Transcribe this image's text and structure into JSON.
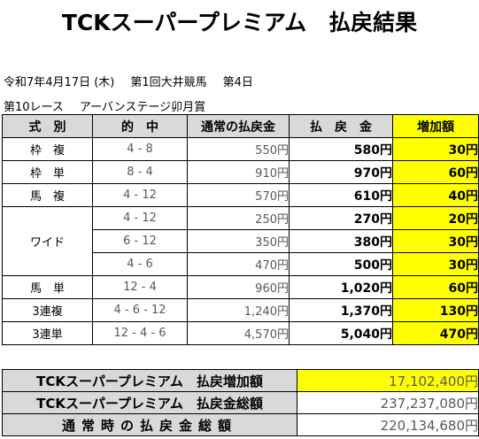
{
  "title": "TCKスーパープレミアム　払戻結果",
  "race_info": {
    "date": "令和7年4月17日 (木)",
    "meeting": "第1回大井競馬",
    "day": "第4日",
    "race_number": "第10レース",
    "race_name": "アーバンステージ卯月賞"
  },
  "table": {
    "headers": {
      "type": "式　別",
      "combination": "的　中",
      "usual": "通常の払戻金",
      "payout": "払　戻　金",
      "increase": "増加額"
    },
    "groups": [
      {
        "type": "枠　複",
        "rows": [
          {
            "combination": "4 - 8",
            "usual": "550円",
            "payout": "580円",
            "increase": "30円"
          }
        ]
      },
      {
        "type": "枠　単",
        "rows": [
          {
            "combination": "8 - 4",
            "usual": "910円",
            "payout": "970円",
            "increase": "60円"
          }
        ]
      },
      {
        "type": "馬　複",
        "rows": [
          {
            "combination": "4 - 12",
            "usual": "570円",
            "payout": "610円",
            "increase": "40円"
          }
        ]
      },
      {
        "type": "ワイド",
        "rows": [
          {
            "combination": "4 - 12",
            "usual": "250円",
            "payout": "270円",
            "increase": "20円"
          },
          {
            "combination": "6 - 12",
            "usual": "350円",
            "payout": "380円",
            "increase": "30円"
          },
          {
            "combination": "4 - 6",
            "usual": "470円",
            "payout": "500円",
            "increase": "30円"
          }
        ]
      },
      {
        "type": "馬　単",
        "rows": [
          {
            "combination": "12 - 4",
            "usual": "960円",
            "payout": "1,020円",
            "increase": "60円"
          }
        ]
      },
      {
        "type": "3連複",
        "rows": [
          {
            "combination": "4 - 6 - 12",
            "usual": "1,240円",
            "payout": "1,370円",
            "increase": "130円"
          }
        ]
      },
      {
        "type": "3連単",
        "rows": [
          {
            "combination": "12 - 4 - 6",
            "usual": "4,570円",
            "payout": "5,040円",
            "increase": "470円"
          }
        ]
      }
    ]
  },
  "summary": {
    "premium_increase_label": "TCKスーパープレミアム　払戻増加額",
    "premium_increase_value": "17,102,400円",
    "premium_total_label": "TCKスーパープレミアム　払戻金総額",
    "premium_total_value": "237,237,080円",
    "usual_total_label": "通常時の払戻金総額",
    "usual_total_value": "220,134,680円"
  },
  "colors": {
    "header_gray": "#d9d9d9",
    "highlight_yellow": "#ffff00"
  }
}
